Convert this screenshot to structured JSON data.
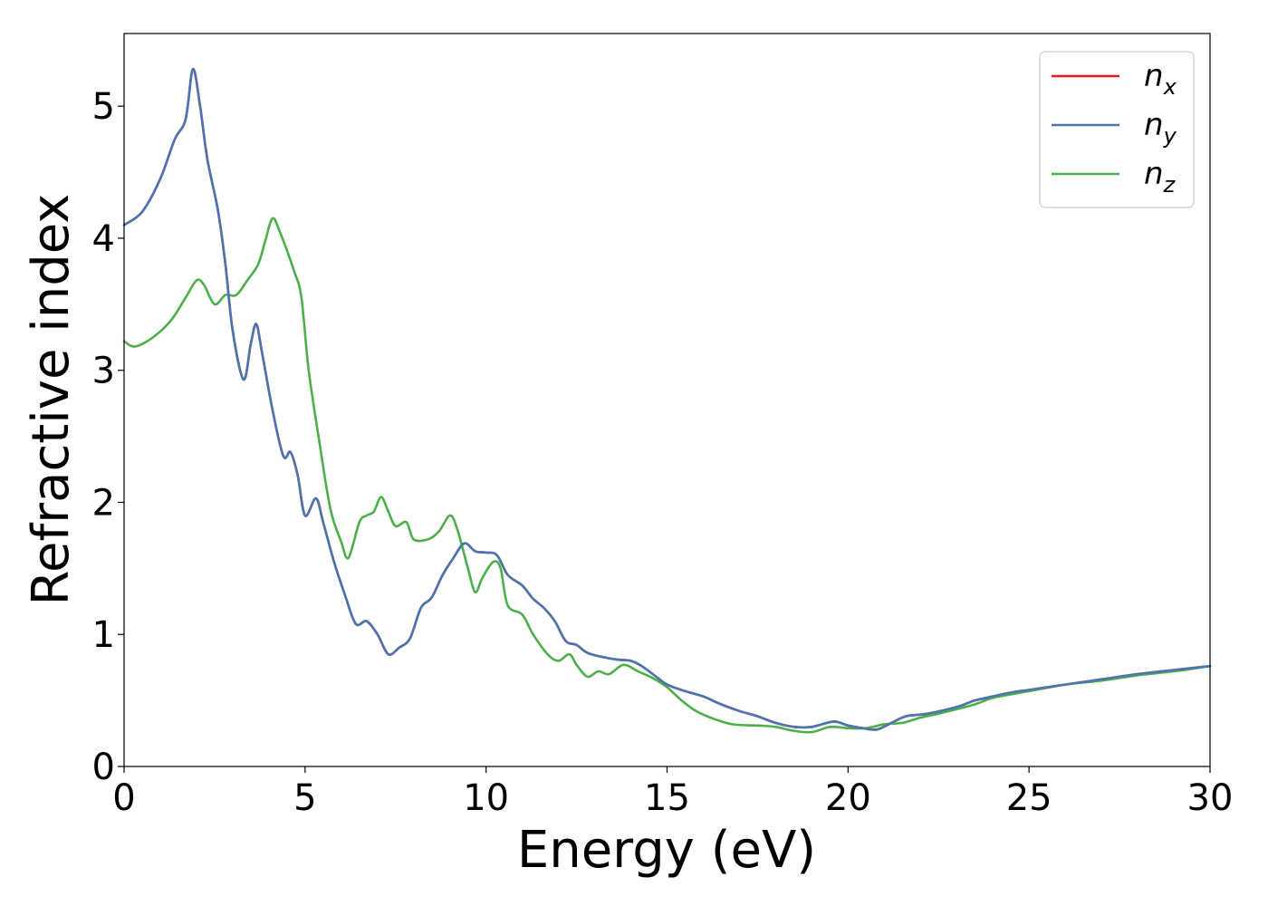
{
  "chart_data": {
    "type": "line",
    "title": "",
    "xlabel": "Energy (eV)",
    "ylabel": "Refractive index",
    "xlim": [
      0,
      30
    ],
    "ylim": [
      0,
      5.55
    ],
    "xticks": [
      0,
      5,
      10,
      15,
      20,
      25,
      30
    ],
    "xtick_labels": [
      "0",
      "5",
      "10",
      "15",
      "20",
      "25",
      "30"
    ],
    "yticks": [
      0,
      1,
      2,
      3,
      4,
      5
    ],
    "ytick_labels": [
      "0",
      "1",
      "2",
      "3",
      "4",
      "5"
    ],
    "grid": false,
    "legend_position": "top-right",
    "series": [
      {
        "name": "n_x",
        "legend_main": "n",
        "legend_sub": "x",
        "color": "#e41a1c",
        "points": [
          [
            0,
            4.1
          ],
          [
            0.5,
            4.2
          ],
          [
            1.0,
            4.45
          ],
          [
            1.4,
            4.75
          ],
          [
            1.7,
            4.9
          ],
          [
            1.9,
            5.28
          ],
          [
            2.1,
            5.0
          ],
          [
            2.3,
            4.6
          ],
          [
            2.6,
            4.2
          ],
          [
            2.8,
            3.8
          ],
          [
            3.0,
            3.3
          ],
          [
            3.3,
            2.93
          ],
          [
            3.5,
            3.2
          ],
          [
            3.65,
            3.35
          ],
          [
            3.8,
            3.15
          ],
          [
            4.1,
            2.7
          ],
          [
            4.4,
            2.35
          ],
          [
            4.6,
            2.38
          ],
          [
            4.8,
            2.2
          ],
          [
            5.0,
            1.9
          ],
          [
            5.3,
            2.03
          ],
          [
            5.5,
            1.85
          ],
          [
            5.8,
            1.55
          ],
          [
            6.1,
            1.3
          ],
          [
            6.4,
            1.08
          ],
          [
            6.7,
            1.1
          ],
          [
            7.0,
            1.0
          ],
          [
            7.3,
            0.85
          ],
          [
            7.6,
            0.9
          ],
          [
            7.9,
            0.97
          ],
          [
            8.2,
            1.2
          ],
          [
            8.5,
            1.28
          ],
          [
            8.8,
            1.45
          ],
          [
            9.1,
            1.58
          ],
          [
            9.4,
            1.69
          ],
          [
            9.7,
            1.63
          ],
          [
            10.0,
            1.62
          ],
          [
            10.3,
            1.6
          ],
          [
            10.6,
            1.45
          ],
          [
            11.0,
            1.37
          ],
          [
            11.3,
            1.27
          ],
          [
            11.6,
            1.2
          ],
          [
            11.9,
            1.1
          ],
          [
            12.2,
            0.95
          ],
          [
            12.5,
            0.92
          ],
          [
            12.8,
            0.86
          ],
          [
            13.2,
            0.83
          ],
          [
            13.6,
            0.81
          ],
          [
            14.0,
            0.8
          ],
          [
            14.3,
            0.76
          ],
          [
            14.7,
            0.68
          ],
          [
            15.0,
            0.62
          ],
          [
            15.5,
            0.57
          ],
          [
            16.0,
            0.53
          ],
          [
            16.5,
            0.47
          ],
          [
            17.0,
            0.42
          ],
          [
            17.5,
            0.38
          ],
          [
            18.0,
            0.33
          ],
          [
            18.5,
            0.3
          ],
          [
            19.0,
            0.3
          ],
          [
            19.6,
            0.34
          ],
          [
            20.0,
            0.31
          ],
          [
            20.4,
            0.29
          ],
          [
            20.8,
            0.28
          ],
          [
            21.2,
            0.33
          ],
          [
            21.6,
            0.38
          ],
          [
            22.2,
            0.4
          ],
          [
            23.0,
            0.45
          ],
          [
            23.5,
            0.5
          ],
          [
            24.0,
            0.53
          ],
          [
            24.5,
            0.56
          ],
          [
            25.0,
            0.58
          ],
          [
            26.0,
            0.62
          ],
          [
            27.0,
            0.66
          ],
          [
            28.0,
            0.7
          ],
          [
            29.0,
            0.73
          ],
          [
            30.0,
            0.76
          ]
        ]
      },
      {
        "name": "n_y",
        "legend_main": "n",
        "legend_sub": "y",
        "color": "#4a75b0",
        "points": [
          [
            0,
            4.1
          ],
          [
            0.5,
            4.2
          ],
          [
            1.0,
            4.45
          ],
          [
            1.4,
            4.75
          ],
          [
            1.7,
            4.9
          ],
          [
            1.9,
            5.28
          ],
          [
            2.1,
            5.0
          ],
          [
            2.3,
            4.6
          ],
          [
            2.6,
            4.2
          ],
          [
            2.8,
            3.8
          ],
          [
            3.0,
            3.3
          ],
          [
            3.3,
            2.93
          ],
          [
            3.5,
            3.2
          ],
          [
            3.65,
            3.35
          ],
          [
            3.8,
            3.15
          ],
          [
            4.1,
            2.7
          ],
          [
            4.4,
            2.35
          ],
          [
            4.6,
            2.38
          ],
          [
            4.8,
            2.2
          ],
          [
            5.0,
            1.9
          ],
          [
            5.3,
            2.03
          ],
          [
            5.5,
            1.85
          ],
          [
            5.8,
            1.55
          ],
          [
            6.1,
            1.3
          ],
          [
            6.4,
            1.08
          ],
          [
            6.7,
            1.1
          ],
          [
            7.0,
            1.0
          ],
          [
            7.3,
            0.85
          ],
          [
            7.6,
            0.9
          ],
          [
            7.9,
            0.97
          ],
          [
            8.2,
            1.2
          ],
          [
            8.5,
            1.28
          ],
          [
            8.8,
            1.45
          ],
          [
            9.1,
            1.58
          ],
          [
            9.4,
            1.69
          ],
          [
            9.7,
            1.63
          ],
          [
            10.0,
            1.62
          ],
          [
            10.3,
            1.6
          ],
          [
            10.6,
            1.45
          ],
          [
            11.0,
            1.37
          ],
          [
            11.3,
            1.27
          ],
          [
            11.6,
            1.2
          ],
          [
            11.9,
            1.1
          ],
          [
            12.2,
            0.95
          ],
          [
            12.5,
            0.92
          ],
          [
            12.8,
            0.86
          ],
          [
            13.2,
            0.83
          ],
          [
            13.6,
            0.81
          ],
          [
            14.0,
            0.8
          ],
          [
            14.3,
            0.76
          ],
          [
            14.7,
            0.68
          ],
          [
            15.0,
            0.62
          ],
          [
            15.5,
            0.57
          ],
          [
            16.0,
            0.53
          ],
          [
            16.5,
            0.47
          ],
          [
            17.0,
            0.42
          ],
          [
            17.5,
            0.38
          ],
          [
            18.0,
            0.33
          ],
          [
            18.5,
            0.3
          ],
          [
            19.0,
            0.3
          ],
          [
            19.6,
            0.34
          ],
          [
            20.0,
            0.31
          ],
          [
            20.4,
            0.29
          ],
          [
            20.8,
            0.28
          ],
          [
            21.2,
            0.33
          ],
          [
            21.6,
            0.38
          ],
          [
            22.2,
            0.4
          ],
          [
            23.0,
            0.45
          ],
          [
            23.5,
            0.5
          ],
          [
            24.0,
            0.53
          ],
          [
            24.5,
            0.56
          ],
          [
            25.0,
            0.58
          ],
          [
            26.0,
            0.62
          ],
          [
            27.0,
            0.66
          ],
          [
            28.0,
            0.7
          ],
          [
            29.0,
            0.73
          ],
          [
            30.0,
            0.76
          ]
        ]
      },
      {
        "name": "n_z",
        "legend_main": "n",
        "legend_sub": "z",
        "color": "#4daf4a",
        "points": [
          [
            0,
            3.22
          ],
          [
            0.3,
            3.18
          ],
          [
            0.8,
            3.25
          ],
          [
            1.3,
            3.38
          ],
          [
            1.7,
            3.55
          ],
          [
            2.0,
            3.68
          ],
          [
            2.2,
            3.65
          ],
          [
            2.5,
            3.5
          ],
          [
            2.8,
            3.57
          ],
          [
            3.1,
            3.57
          ],
          [
            3.4,
            3.68
          ],
          [
            3.7,
            3.8
          ],
          [
            3.9,
            3.98
          ],
          [
            4.1,
            4.15
          ],
          [
            4.3,
            4.05
          ],
          [
            4.7,
            3.75
          ],
          [
            4.9,
            3.55
          ],
          [
            5.1,
            3.0
          ],
          [
            5.4,
            2.45
          ],
          [
            5.7,
            1.95
          ],
          [
            6.0,
            1.7
          ],
          [
            6.2,
            1.58
          ],
          [
            6.5,
            1.85
          ],
          [
            6.7,
            1.9
          ],
          [
            6.9,
            1.93
          ],
          [
            7.1,
            2.04
          ],
          [
            7.3,
            1.93
          ],
          [
            7.5,
            1.82
          ],
          [
            7.8,
            1.85
          ],
          [
            8.0,
            1.72
          ],
          [
            8.4,
            1.72
          ],
          [
            8.7,
            1.78
          ],
          [
            9.0,
            1.9
          ],
          [
            9.2,
            1.8
          ],
          [
            9.5,
            1.5
          ],
          [
            9.7,
            1.32
          ],
          [
            9.9,
            1.43
          ],
          [
            10.2,
            1.55
          ],
          [
            10.4,
            1.5
          ],
          [
            10.6,
            1.22
          ],
          [
            11.0,
            1.15
          ],
          [
            11.3,
            1.0
          ],
          [
            11.7,
            0.85
          ],
          [
            12.0,
            0.8
          ],
          [
            12.3,
            0.85
          ],
          [
            12.5,
            0.77
          ],
          [
            12.8,
            0.68
          ],
          [
            13.1,
            0.72
          ],
          [
            13.4,
            0.7
          ],
          [
            13.8,
            0.77
          ],
          [
            14.2,
            0.72
          ],
          [
            14.6,
            0.67
          ],
          [
            15.0,
            0.6
          ],
          [
            15.4,
            0.5
          ],
          [
            15.8,
            0.42
          ],
          [
            16.2,
            0.37
          ],
          [
            16.8,
            0.32
          ],
          [
            17.5,
            0.31
          ],
          [
            18.0,
            0.3
          ],
          [
            18.5,
            0.27
          ],
          [
            19.0,
            0.26
          ],
          [
            19.5,
            0.3
          ],
          [
            20.0,
            0.29
          ],
          [
            20.5,
            0.29
          ],
          [
            21.0,
            0.32
          ],
          [
            21.5,
            0.33
          ],
          [
            22.0,
            0.37
          ],
          [
            22.5,
            0.4
          ],
          [
            23.5,
            0.47
          ],
          [
            24.0,
            0.52
          ],
          [
            25.0,
            0.57
          ],
          [
            26.0,
            0.62
          ],
          [
            27.0,
            0.65
          ],
          [
            28.0,
            0.69
          ],
          [
            29.0,
            0.72
          ],
          [
            30.0,
            0.76
          ]
        ]
      }
    ]
  }
}
